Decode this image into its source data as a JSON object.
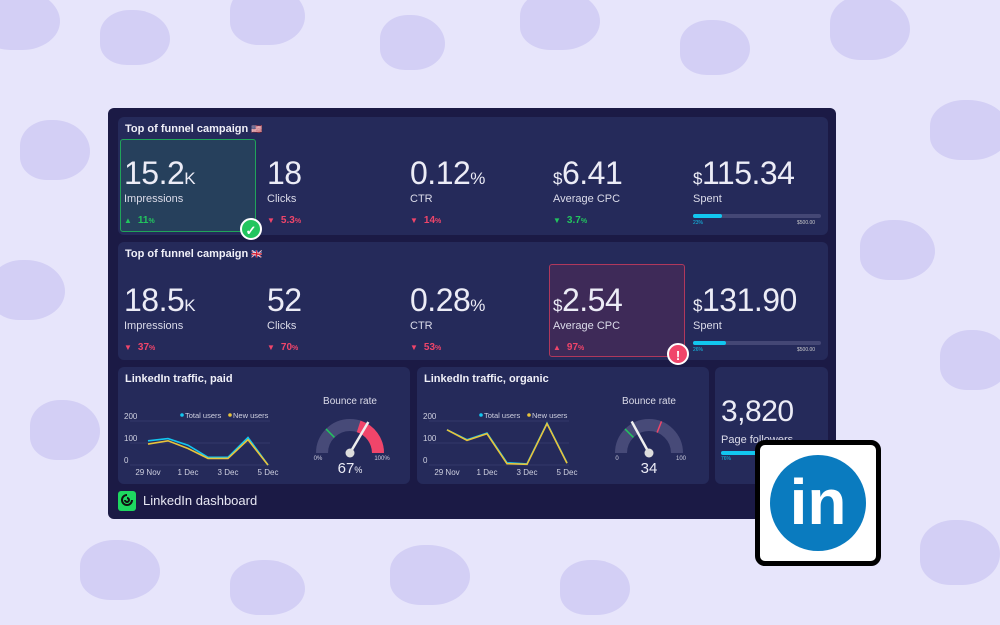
{
  "colors": {
    "background": "#e7e5fb",
    "panel": "#1b1a45",
    "card": "#252a5a",
    "up": "#22c55e",
    "down": "#f0456a",
    "total_users": "#12c6ef",
    "new_users": "#e8c33a",
    "linkedin": "#0a7bbf"
  },
  "campaigns": [
    {
      "title": "Top of funnel campaign",
      "flag": "🇺🇸",
      "metrics": [
        {
          "prefix": "",
          "value": "15.2",
          "unit": "K",
          "label": "Impressions",
          "change": "11",
          "change_unit": "%",
          "dir": "up",
          "good": true,
          "status": "check-icon"
        },
        {
          "prefix": "",
          "value": "18",
          "unit": "",
          "label": "Clicks",
          "change": "5.3",
          "change_unit": "%",
          "dir": "down",
          "good": false
        },
        {
          "prefix": "",
          "value": "0.12",
          "unit": "%",
          "label": "CTR",
          "change": "14",
          "change_unit": "%",
          "dir": "down",
          "good": false
        },
        {
          "prefix": "$",
          "value": "6.41",
          "unit": "",
          "label": "Average CPC",
          "change": "3.7",
          "change_unit": "%",
          "dir": "down",
          "good": true
        },
        {
          "prefix": "$",
          "value": "115.34",
          "unit": "",
          "label": "Spent",
          "progress": 23,
          "progress_label": "23%",
          "target": "$500.00"
        }
      ]
    },
    {
      "title": "Top of funnel campaign",
      "flag": "🇬🇧",
      "metrics": [
        {
          "prefix": "",
          "value": "18.5",
          "unit": "K",
          "label": "Impressions",
          "change": "37",
          "change_unit": "%",
          "dir": "down",
          "good": false
        },
        {
          "prefix": "",
          "value": "52",
          "unit": "",
          "label": "Clicks",
          "change": "70",
          "change_unit": "%",
          "dir": "down",
          "good": false
        },
        {
          "prefix": "",
          "value": "0.28",
          "unit": "%",
          "label": "CTR",
          "change": "53",
          "change_unit": "%",
          "dir": "down",
          "good": false
        },
        {
          "prefix": "$",
          "value": "2.54",
          "unit": "",
          "label": "Average CPC",
          "change": "97",
          "change_unit": "%",
          "dir": "up",
          "good": false,
          "status": "alert-icon"
        },
        {
          "prefix": "$",
          "value": "131.90",
          "unit": "",
          "label": "Spent",
          "progress": 26,
          "progress_label": "26%",
          "target": "$500.00"
        }
      ]
    }
  ],
  "traffic": [
    {
      "title": "LinkedIn traffic, paid",
      "legend": [
        "Total users",
        "New users"
      ],
      "yticks": [
        "200",
        "100",
        "0"
      ],
      "xticks": [
        "29 Nov",
        "1 Dec",
        "3 Dec",
        "5 Dec"
      ],
      "total": [
        110,
        120,
        90,
        35,
        35,
        125,
        0
      ],
      "new": [
        95,
        110,
        75,
        30,
        30,
        115,
        0
      ],
      "gauge": {
        "title": "Bounce rate",
        "value": 67,
        "display": "67",
        "unit": "%",
        "min": "0%",
        "max": "100%",
        "green_mark": 25,
        "red_from": 60
      }
    },
    {
      "title": "LinkedIn traffic, organic",
      "legend": [
        "Total users",
        "New users"
      ],
      "yticks": [
        "200",
        "100",
        "0"
      ],
      "xticks": [
        "29 Nov",
        "1 Dec",
        "3 Dec",
        "5 Dec"
      ],
      "total": [
        160,
        115,
        145,
        10,
        5,
        190,
        10
      ],
      "new": [
        160,
        112,
        142,
        6,
        3,
        188,
        8
      ],
      "gauge": {
        "title": "Bounce rate",
        "value": 34,
        "display": "34",
        "unit": "",
        "min": "0",
        "max": "100",
        "green_mark": 25,
        "red_mark": 62
      }
    }
  ],
  "followers": {
    "value": "3,820",
    "label": "Page followers",
    "progress": 76,
    "progress_label": "76%"
  },
  "footer": {
    "title": "LinkedIn dashboard"
  },
  "logo": {
    "text": "in"
  }
}
